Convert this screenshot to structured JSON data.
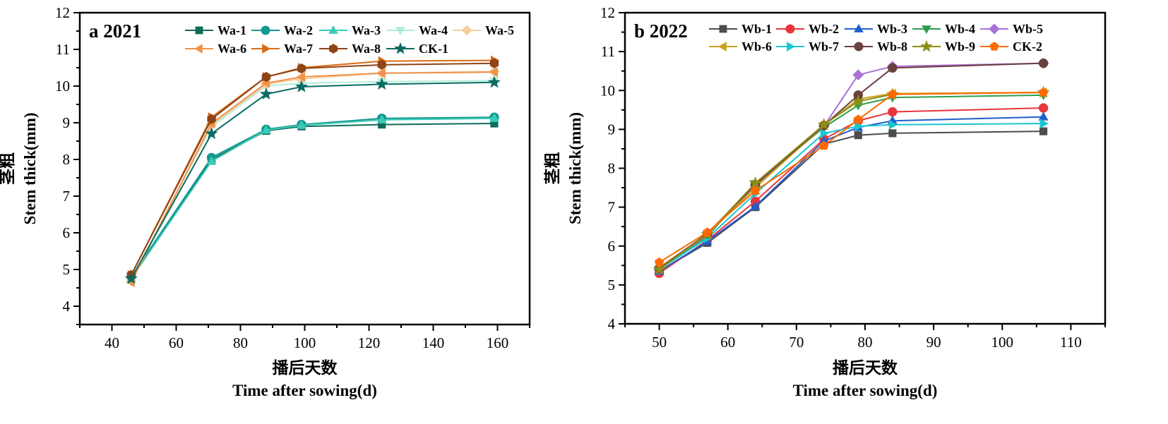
{
  "chart_data": [
    {
      "type": "line",
      "panel_label": "a 2021",
      "xlabel_cn": "播后天数",
      "xlabel": "Time after sowing(d)",
      "ylabel_cn": "茎粗",
      "ylabel": "Stem thick(mm)",
      "xlim": [
        30,
        170
      ],
      "ylim": [
        3.5,
        12
      ],
      "xticks": [
        40,
        60,
        80,
        100,
        120,
        140,
        160
      ],
      "yticks": [
        4,
        5,
        6,
        7,
        8,
        9,
        10,
        11,
        12
      ],
      "x": [
        46,
        71,
        88,
        99,
        124,
        159
      ],
      "legend_position": "top-right",
      "series": [
        {
          "name": "Wa-1",
          "color": "#0f6b5a",
          "marker": "square",
          "values": [
            4.78,
            8.0,
            8.78,
            8.9,
            8.95,
            8.98
          ]
        },
        {
          "name": "Wa-2",
          "color": "#13998f",
          "marker": "circle",
          "values": [
            4.8,
            8.05,
            8.82,
            8.95,
            9.12,
            9.15
          ]
        },
        {
          "name": "Wa-3",
          "color": "#3ccab8",
          "marker": "triangle-up",
          "values": [
            4.75,
            7.95,
            8.8,
            8.93,
            9.08,
            9.12
          ]
        },
        {
          "name": "Wa-4",
          "color": "#b4ecd8",
          "marker": "triangle-down",
          "values": [
            4.72,
            8.9,
            10.0,
            10.08,
            10.12,
            10.15
          ]
        },
        {
          "name": "Wa-5",
          "color": "#f6cfa0",
          "marker": "diamond",
          "values": [
            4.7,
            8.95,
            10.05,
            10.2,
            10.35,
            10.4
          ]
        },
        {
          "name": "Wa-6",
          "color": "#f0924a",
          "marker": "triangle-left",
          "values": [
            4.65,
            8.98,
            10.08,
            10.25,
            10.35,
            10.38
          ]
        },
        {
          "name": "Wa-7",
          "color": "#d86b14",
          "marker": "triangle-right",
          "values": [
            4.85,
            9.15,
            10.25,
            10.5,
            10.68,
            10.7
          ]
        },
        {
          "name": "Wa-8",
          "color": "#8f4416",
          "marker": "hexagon",
          "values": [
            4.85,
            9.1,
            10.25,
            10.48,
            10.58,
            10.62
          ]
        },
        {
          "name": "CK-1",
          "color": "#0a6b64",
          "marker": "star",
          "values": [
            4.75,
            8.7,
            9.78,
            9.98,
            10.05,
            10.1
          ]
        }
      ]
    },
    {
      "type": "line",
      "panel_label": "b 2022",
      "xlabel_cn": "播后天数",
      "xlabel": "Time after sowing(d)",
      "ylabel_cn": "茎粗",
      "ylabel": "Stem thick(mm)",
      "xlim": [
        45,
        115
      ],
      "ylim": [
        4,
        12
      ],
      "xticks": [
        50,
        60,
        70,
        80,
        90,
        100,
        110
      ],
      "yticks": [
        4,
        5,
        6,
        7,
        8,
        9,
        10,
        11,
        12
      ],
      "x": [
        50,
        57,
        64,
        74,
        79,
        84,
        106
      ],
      "legend_position": "top-right",
      "series": [
        {
          "name": "Wb-1",
          "color": "#4d4d4d",
          "marker": "square",
          "values": [
            5.35,
            6.08,
            7.0,
            8.62,
            8.85,
            8.9,
            8.95
          ]
        },
        {
          "name": "Wb-2",
          "color": "#e8353c",
          "marker": "circle",
          "values": [
            5.3,
            6.15,
            7.15,
            8.75,
            9.22,
            9.45,
            9.55
          ]
        },
        {
          "name": "Wb-3",
          "color": "#1f5fd0",
          "marker": "triangle-up",
          "values": [
            5.35,
            6.12,
            7.02,
            8.7,
            9.05,
            9.22,
            9.32
          ]
        },
        {
          "name": "Wb-4",
          "color": "#2e9e4c",
          "marker": "triangle-down",
          "values": [
            5.4,
            6.25,
            7.6,
            9.05,
            9.62,
            9.82,
            9.88
          ]
        },
        {
          "name": "Wb-5",
          "color": "#a872d8",
          "marker": "diamond",
          "values": [
            5.4,
            6.28,
            7.55,
            9.08,
            10.4,
            10.62,
            10.7
          ]
        },
        {
          "name": "Wb-6",
          "color": "#c9a41a",
          "marker": "triangle-left",
          "values": [
            5.45,
            6.3,
            7.5,
            9.1,
            9.78,
            9.92,
            9.95
          ]
        },
        {
          "name": "Wb-7",
          "color": "#18c6cf",
          "marker": "triangle-right",
          "values": [
            5.4,
            6.2,
            7.35,
            8.9,
            9.08,
            9.12,
            9.15
          ]
        },
        {
          "name": "Wb-8",
          "color": "#6b4040",
          "marker": "circle",
          "values": [
            5.42,
            6.32,
            7.58,
            9.1,
            9.88,
            10.58,
            10.7
          ]
        },
        {
          "name": "Wb-9",
          "color": "#8e8d16",
          "marker": "star",
          "values": [
            5.4,
            6.3,
            7.62,
            9.12,
            9.72,
            9.9,
            9.95
          ]
        },
        {
          "name": "CK-2",
          "color": "#ff6a00",
          "marker": "pentagon",
          "values": [
            5.58,
            6.35,
            7.42,
            8.58,
            9.25,
            9.9,
            9.95
          ]
        }
      ]
    }
  ]
}
